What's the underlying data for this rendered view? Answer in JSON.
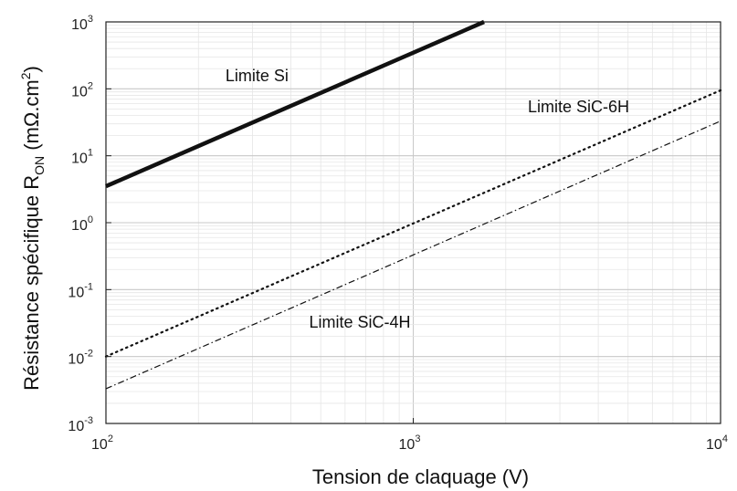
{
  "chart_data": {
    "type": "line",
    "xscale": "log",
    "yscale": "log",
    "xlim": [
      100,
      10000
    ],
    "ylim": [
      0.001,
      1000
    ],
    "grid": true,
    "xlabel": "Tension de claquage (V)",
    "ylabel": {
      "main": "Résistance spécifique R",
      "subscript": "ON",
      "unit_open": " (mΩ.cm",
      "unit_sup": "2",
      "unit_close": ")"
    },
    "x_ticks": [
      {
        "value": 100,
        "base": "10",
        "exp": "2"
      },
      {
        "value": 1000,
        "base": "10",
        "exp": "3"
      },
      {
        "value": 10000,
        "base": "10",
        "exp": "4"
      }
    ],
    "y_ticks": [
      {
        "value": 1000,
        "base": "10",
        "exp": "3"
      },
      {
        "value": 100,
        "base": "10",
        "exp": "2"
      },
      {
        "value": 10,
        "base": "10",
        "exp": "1"
      },
      {
        "value": 1,
        "base": "10",
        "exp": "0"
      },
      {
        "value": 0.1,
        "base": "10",
        "exp": "-1"
      },
      {
        "value": 0.01,
        "base": "10",
        "exp": "-2"
      },
      {
        "value": 0.001,
        "base": "10",
        "exp": "-3"
      }
    ],
    "series": [
      {
        "name": "Limite Si",
        "style": "solid-thick",
        "x": [
          100,
          1700
        ],
        "y": [
          3.5,
          1000
        ]
      },
      {
        "name": "Limite SiC-6H",
        "style": "dotted",
        "x": [
          100,
          10000
        ],
        "y": [
          0.01,
          95
        ]
      },
      {
        "name": "Limite SiC-4H",
        "style": "dashdot",
        "x": [
          100,
          10000
        ],
        "y": [
          0.0033,
          33
        ]
      }
    ],
    "annotations": [
      {
        "text": "Limite Si",
        "x": 310,
        "y": 130
      },
      {
        "text": "Limite SiC-6H",
        "x": 3450,
        "y": 45
      },
      {
        "text": "Limite SiC-4H",
        "x": 670,
        "y": 0.027
      }
    ],
    "colors": {
      "line": "#111111",
      "grid": "#c8c8c8"
    }
  }
}
